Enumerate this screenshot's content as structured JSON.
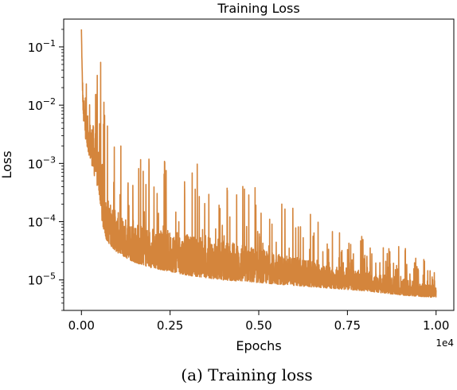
{
  "chart_data": {
    "type": "line",
    "title": "Training Loss",
    "xlabel": "Epochs",
    "ylabel": "Loss",
    "x_scale_label": "1e4",
    "xlim": [
      -500,
      10500
    ],
    "ylim": [
      3e-06,
      0.3
    ],
    "yscale": "log",
    "x_ticks": [
      0,
      2500,
      5000,
      7500,
      10000
    ],
    "x_tick_labels": [
      "0.00",
      "0.25",
      "0.50",
      "0.75",
      "1.00"
    ],
    "y_ticks": [
      1e-05,
      0.0001,
      0.001,
      0.01,
      0.1
    ],
    "y_tick_labels": [
      "10^-5",
      "10^-4",
      "10^-3",
      "10^-2",
      "10^-1"
    ],
    "grid": false,
    "series": [
      {
        "color": "#d4853c",
        "x": [
          0,
          20,
          50,
          100,
          200,
          300,
          400,
          500,
          600,
          700,
          800,
          1000,
          1200,
          1500,
          2000,
          2500,
          3000,
          4000,
          5000,
          6000,
          7000,
          8000,
          9000,
          10000
        ],
        "lower": [
          0.2,
          0.03,
          0.006,
          0.003,
          0.0015,
          0.0009,
          0.0005,
          0.0003,
          8e-05,
          5e-05,
          4e-05,
          3e-05,
          2.5e-05,
          2e-05,
          1.6e-05,
          1.4e-05,
          1.2e-05,
          1e-05,
          9e-06,
          8e-06,
          7.2e-06,
          6.5e-06,
          5.5e-06,
          5e-06
        ],
        "upper": [
          0.2,
          0.05,
          0.015,
          0.009,
          0.006,
          0.005,
          0.004,
          0.0025,
          0.0006,
          0.0003,
          0.00022,
          0.00015,
          0.00012,
          0.0001,
          8e-05,
          7e-05,
          6e-05,
          5e-05,
          3.5e-05,
          2.5e-05,
          1.8e-05,
          1.4e-05,
          1.1e-05,
          8e-06
        ]
      }
    ]
  },
  "caption": "(a) Training loss"
}
